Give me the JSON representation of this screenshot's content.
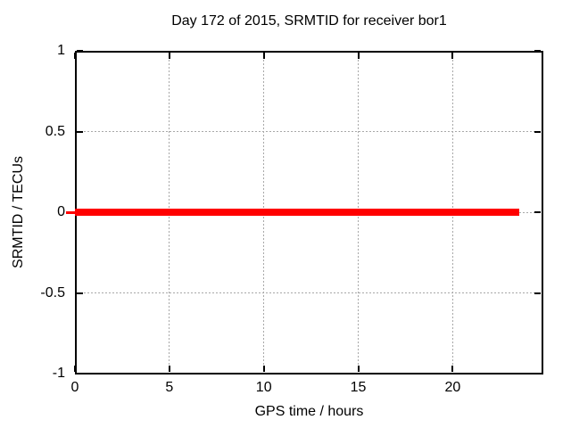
{
  "chart_data": {
    "type": "line",
    "title": "Day 172 of 2015, SRMTID for receiver bor1",
    "xlabel": "GPS time / hours",
    "ylabel": "SRMTID / TECUs",
    "xlim": [
      0,
      24.75
    ],
    "ylim": [
      -1,
      1
    ],
    "xticks": [
      0,
      5,
      10,
      15,
      20
    ],
    "yticks": [
      1,
      0.5,
      0,
      -0.5,
      -1
    ],
    "grid": true,
    "legend": "none",
    "colors": {
      "background": "#ffffff",
      "axis": "#000000",
      "text": "#000000",
      "grid": "#a8a8a8",
      "series": "#ff0000"
    },
    "series": [
      {
        "name": "SRMTID",
        "color": "#ff0000",
        "style": "line",
        "linewidth": 8,
        "points": [
          [
            0,
            0
          ],
          [
            23.5,
            0
          ]
        ]
      }
    ]
  }
}
